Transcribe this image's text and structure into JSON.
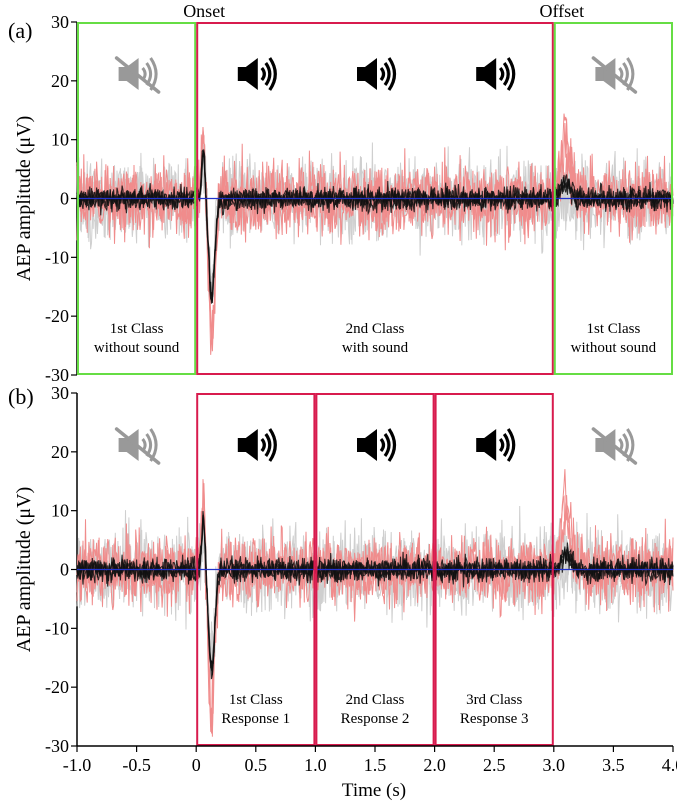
{
  "figure": {
    "xlabel": "Time (s)",
    "ylabel": "AEP amplitude (μV)",
    "xticks": [
      "-1.0",
      "-0.5",
      "0",
      "0.5",
      "1.0",
      "1.5",
      "2.0",
      "2.5",
      "3.0",
      "3.5",
      "4.0"
    ],
    "yticks": [
      "30",
      "20",
      "10",
      "0",
      "-10",
      "-20",
      "-30"
    ],
    "colors": {
      "no_sound_box": "#66dd44",
      "sound_box": "#d81b4e",
      "baseline": "#2233cc",
      "trace_dark": "#111111",
      "trace_pink": "#f08c8c",
      "trace_grey": "#cfcfcf",
      "icon_on": "#000000",
      "icon_off": "#999999"
    }
  },
  "chart_data": [
    {
      "type": "line",
      "panel_label": "(a)",
      "xlim": [
        -1.0,
        4.0
      ],
      "ylim": [
        -30,
        30
      ],
      "xticks": [
        -1.0,
        -0.5,
        0,
        0.5,
        1.0,
        1.5,
        2.0,
        2.5,
        3.0,
        3.5,
        4.0
      ],
      "yticks": [
        30,
        20,
        10,
        0,
        -10,
        -20,
        -30
      ],
      "annotations": [
        {
          "text": "Onset",
          "x": 0.0
        },
        {
          "text": "Offset",
          "x": 3.0
        }
      ],
      "regions": [
        {
          "x0": -1.0,
          "x1": 0.0,
          "line1": "1st Class",
          "line2": "without sound",
          "sound": false
        },
        {
          "x0": 0.0,
          "x1": 3.0,
          "line1": "2nd Class",
          "line2": "with sound",
          "sound": true
        },
        {
          "x0": 3.0,
          "x1": 4.0,
          "line1": "1st Class",
          "line2": "without sound",
          "sound": false
        }
      ],
      "speaker_icons": [
        {
          "x": -0.5,
          "sound": false
        },
        {
          "x": 0.5,
          "sound": true
        },
        {
          "x": 1.5,
          "sound": true
        },
        {
          "x": 2.5,
          "sound": true
        },
        {
          "x": 3.5,
          "sound": false
        }
      ],
      "baseline_y": 0,
      "traces": {
        "onset_peak_uV": 9,
        "onset_trough_uV": -17,
        "pink_onset_peak_uV": 13,
        "offset_pink_peak_uV": 12,
        "noise_amplitude_uV": 3
      }
    },
    {
      "type": "line",
      "panel_label": "(b)",
      "xlim": [
        -1.0,
        4.0
      ],
      "ylim": [
        -30,
        30
      ],
      "xticks": [
        -1.0,
        -0.5,
        0,
        0.5,
        1.0,
        1.5,
        2.0,
        2.5,
        3.0,
        3.5,
        4.0
      ],
      "yticks": [
        30,
        20,
        10,
        0,
        -10,
        -20,
        -30
      ],
      "regions": [
        {
          "x0": 0.0,
          "x1": 1.0,
          "line1": "1st Class",
          "line2": "Response 1",
          "sound": true
        },
        {
          "x0": 1.0,
          "x1": 2.0,
          "line1": "2nd Class",
          "line2": "Response 2",
          "sound": true
        },
        {
          "x0": 2.0,
          "x1": 3.0,
          "line1": "3rd Class",
          "line2": "Response 3",
          "sound": true
        }
      ],
      "speaker_icons": [
        {
          "x": -0.5,
          "sound": false
        },
        {
          "x": 0.5,
          "sound": true
        },
        {
          "x": 1.5,
          "sound": true
        },
        {
          "x": 2.5,
          "sound": true
        },
        {
          "x": 3.5,
          "sound": false
        }
      ],
      "baseline_y": 0,
      "traces": {
        "onset_peak_uV": 9,
        "onset_trough_uV": -17,
        "pink_onset_peak_uV": 13,
        "offset_pink_peak_uV": 12,
        "noise_amplitude_uV": 3
      }
    }
  ]
}
